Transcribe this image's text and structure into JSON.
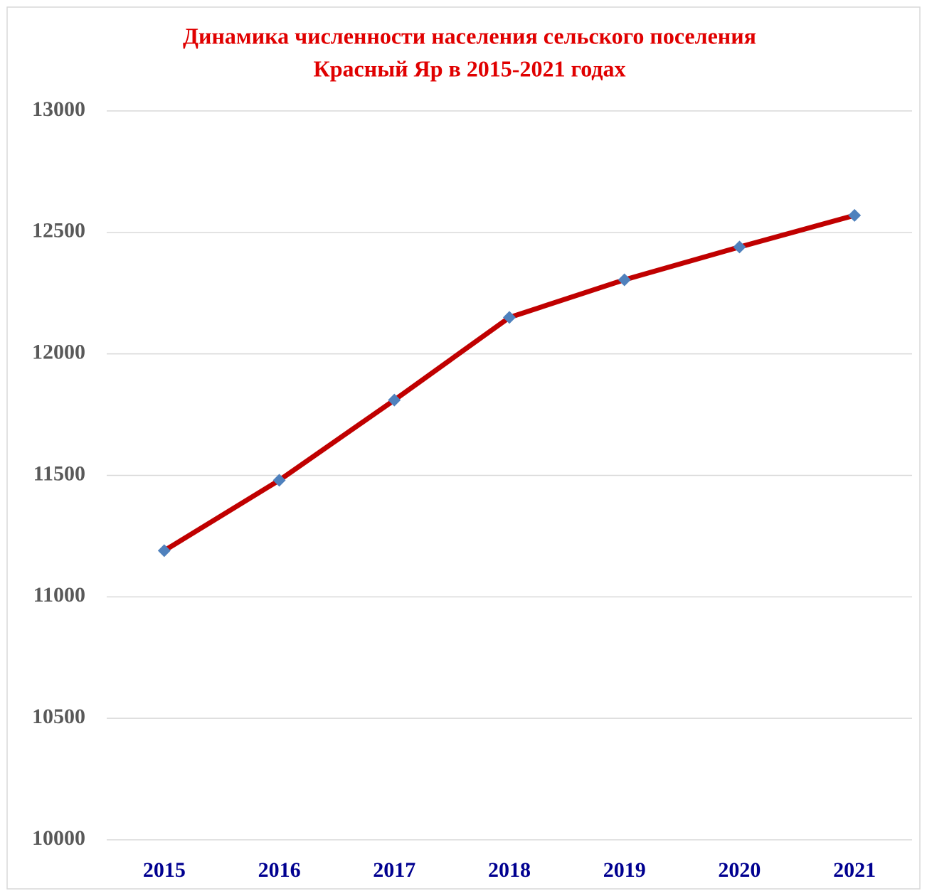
{
  "chart_data": {
    "type": "line",
    "title": [
      "Динамика численности населения сельского поселения",
      "Красный Яр в 2015-2021 годах"
    ],
    "categories": [
      "2015",
      "2016",
      "2017",
      "2018",
      "2019",
      "2020",
      "2021"
    ],
    "series": [
      {
        "color": "#c00000",
        "marker_color": "#4f81bd",
        "values": [
          11190,
          11480,
          11810,
          12150,
          12305,
          12440,
          12570
        ]
      }
    ],
    "ylim": [
      10000,
      13000
    ],
    "yticks": [
      10000,
      10500,
      11000,
      11500,
      12000,
      12500,
      13000
    ],
    "grid": true
  }
}
